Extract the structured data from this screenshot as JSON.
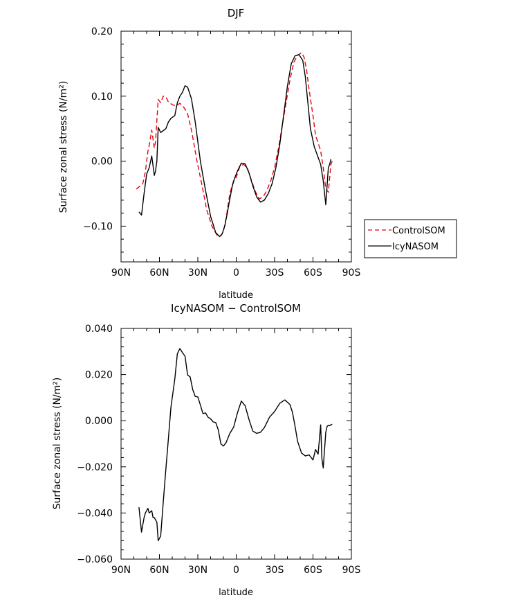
{
  "chart_data": [
    {
      "type": "line",
      "title": "DJF",
      "xlabel": "latitude",
      "ylabel": "Surface zonal stress (N/m²)",
      "ylim": [
        -0.155,
        0.2
      ],
      "xlim": [
        90,
        -90
      ],
      "x_ticks": [
        {
          "value": 90,
          "label": "90N"
        },
        {
          "value": 60,
          "label": "60N"
        },
        {
          "value": 30,
          "label": "30N"
        },
        {
          "value": 0,
          "label": "0"
        },
        {
          "value": -30,
          "label": "30S"
        },
        {
          "value": -60,
          "label": "60S"
        },
        {
          "value": -90,
          "label": "90S"
        }
      ],
      "y_ticks": [
        {
          "value": 0.2,
          "label": "0.20"
        },
        {
          "value": 0.1,
          "label": "0.10"
        },
        {
          "value": 0.0,
          "label": "0.00"
        },
        {
          "value": -0.1,
          "label": "−0.10"
        }
      ],
      "grid": false,
      "legend_position": "right",
      "series": [
        {
          "name": "ControlSOM",
          "color": "#e8000b",
          "dash": "dashed",
          "x": [
            78,
            75,
            73,
            71,
            69,
            68,
            66,
            64,
            63,
            61,
            59,
            57,
            55,
            53,
            50,
            47,
            44,
            41,
            38,
            35,
            31,
            27,
            23,
            19,
            15,
            12,
            10,
            8,
            5,
            2,
            0,
            -3,
            -6,
            -9,
            -12,
            -15,
            -18,
            -21,
            -24,
            -27,
            -30,
            -33,
            -36,
            -39,
            -42,
            -45,
            -48,
            -51,
            -53,
            -55,
            -57,
            -60,
            -62,
            -64,
            -66,
            -68,
            -70,
            -72,
            -74,
            -75,
            -76
          ],
          "y": [
            -0.043,
            -0.038,
            -0.035,
            -0.016,
            0.015,
            0.024,
            0.048,
            0.02,
            0.03,
            0.095,
            0.09,
            0.1,
            0.099,
            0.091,
            0.087,
            0.085,
            0.089,
            0.083,
            0.073,
            0.048,
            0.004,
            -0.035,
            -0.075,
            -0.1,
            -0.114,
            -0.115,
            -0.108,
            -0.089,
            -0.05,
            -0.03,
            -0.025,
            -0.007,
            -0.005,
            -0.012,
            -0.03,
            -0.047,
            -0.058,
            -0.055,
            -0.045,
            -0.03,
            -0.01,
            0.02,
            0.055,
            0.09,
            0.125,
            0.152,
            0.163,
            0.167,
            0.16,
            0.14,
            0.11,
            0.07,
            0.04,
            0.028,
            0.016,
            -0.01,
            -0.042,
            -0.048,
            -0.005,
            0.0,
            0.004
          ]
        },
        {
          "name": "IcyNASOM",
          "color": "#000000",
          "dash": "solid",
          "x": [
            76,
            74,
            72,
            70,
            68,
            66,
            64,
            63,
            62,
            61,
            59,
            57,
            55,
            53,
            51,
            48,
            46,
            44,
            42,
            40,
            38,
            35,
            32,
            28,
            24,
            20,
            16,
            13,
            11,
            9,
            7,
            5,
            3,
            1,
            -1,
            -4,
            -7,
            -10,
            -13,
            -16,
            -19,
            -22,
            -25,
            -28,
            -31,
            -34,
            -37,
            -40,
            -43,
            -46,
            -49,
            -52,
            -54,
            -56,
            -58,
            -61,
            -64,
            -66,
            -68,
            -70,
            -72,
            -73,
            -74
          ],
          "y": [
            -0.078,
            -0.083,
            -0.05,
            -0.02,
            -0.01,
            0.008,
            -0.022,
            -0.015,
            0.0,
            0.052,
            0.044,
            0.047,
            0.05,
            0.06,
            0.066,
            0.07,
            0.09,
            0.1,
            0.106,
            0.116,
            0.114,
            0.096,
            0.06,
            0.0,
            -0.045,
            -0.085,
            -0.11,
            -0.116,
            -0.112,
            -0.1,
            -0.08,
            -0.058,
            -0.038,
            -0.025,
            -0.015,
            -0.003,
            -0.004,
            -0.018,
            -0.038,
            -0.055,
            -0.063,
            -0.06,
            -0.05,
            -0.035,
            -0.01,
            0.025,
            0.07,
            0.115,
            0.15,
            0.162,
            0.164,
            0.155,
            0.13,
            0.09,
            0.05,
            0.022,
            0.006,
            -0.005,
            -0.03,
            -0.067,
            -0.01,
            -0.005,
            0.003
          ]
        }
      ]
    },
    {
      "type": "line",
      "title": "IcyNASOM − ControlSOM",
      "xlabel": "latitude",
      "ylabel": "Surface zonal stress (N/m²)",
      "ylim": [
        -0.06,
        0.04
      ],
      "xlim": [
        90,
        -90
      ],
      "x_ticks": [
        {
          "value": 90,
          "label": "90N"
        },
        {
          "value": 60,
          "label": "60N"
        },
        {
          "value": 30,
          "label": "30N"
        },
        {
          "value": 0,
          "label": "0"
        },
        {
          "value": -30,
          "label": "30S"
        },
        {
          "value": -60,
          "label": "60S"
        },
        {
          "value": -90,
          "label": "90S"
        }
      ],
      "y_ticks": [
        {
          "value": 0.04,
          "label": "0.040"
        },
        {
          "value": 0.02,
          "label": "0.020"
        },
        {
          "value": 0.0,
          "label": "0.000"
        },
        {
          "value": -0.02,
          "label": "−0.020"
        },
        {
          "value": -0.04,
          "label": "−0.040"
        },
        {
          "value": -0.06,
          "label": "−0.060"
        }
      ],
      "grid": false,
      "series": [
        {
          "color": "#000000",
          "dash": "solid",
          "x": [
            76,
            74,
            72,
            71,
            69,
            68,
            66,
            65,
            64,
            62,
            61,
            59,
            57,
            55,
            53,
            51,
            48,
            46,
            44,
            42,
            40,
            38,
            36,
            34,
            32,
            30,
            28,
            26,
            24,
            22,
            20,
            18,
            16,
            14,
            12,
            10,
            8,
            5,
            2,
            -1,
            -4,
            -7,
            -10,
            -13,
            -16,
            -19,
            -22,
            -26,
            -30,
            -34,
            -38,
            -42,
            -44,
            -46,
            -48,
            -51,
            -54,
            -57,
            -60,
            -62,
            -64,
            -66,
            -67,
            -68,
            -70,
            -71,
            -72,
            -73,
            -74,
            -75
          ],
          "y": [
            -0.0375,
            -0.0483,
            -0.042,
            -0.04,
            -0.038,
            -0.04,
            -0.039,
            -0.042,
            -0.042,
            -0.044,
            -0.052,
            -0.05,
            -0.035,
            -0.021,
            -0.008,
            0.006,
            0.018,
            0.029,
            0.0313,
            0.0295,
            0.028,
            0.0198,
            0.019,
            0.0135,
            0.0105,
            0.0103,
            0.0068,
            0.0031,
            0.0034,
            0.0015,
            0.0008,
            -0.0005,
            -0.0008,
            -0.004,
            -0.01,
            -0.011,
            -0.0096,
            -0.0055,
            -0.0028,
            0.0035,
            0.0085,
            0.0065,
            0.0005,
            -0.0045,
            -0.0055,
            -0.005,
            -0.003,
            0.0015,
            0.004,
            0.0075,
            0.009,
            0.007,
            0.0035,
            -0.0025,
            -0.009,
            -0.014,
            -0.0153,
            -0.0148,
            -0.017,
            -0.0125,
            -0.0145,
            -0.0018,
            -0.0165,
            -0.0205,
            -0.005,
            -0.0025,
            -0.002,
            -0.0022,
            -0.0018,
            -0.0015
          ]
        }
      ]
    }
  ]
}
